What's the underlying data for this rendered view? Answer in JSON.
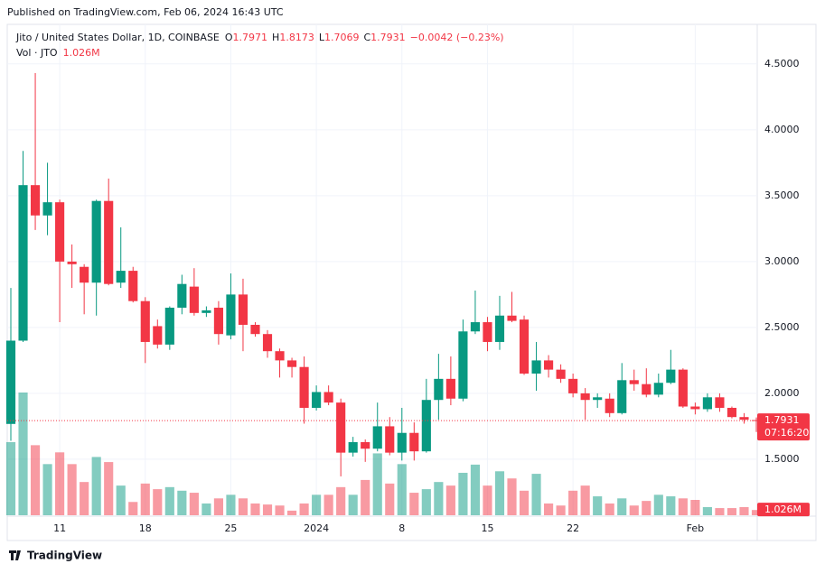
{
  "published": "Published on TradingView.com, Feb 06, 2024 16:43 UTC",
  "footer": "TradingView",
  "chart_data": {
    "type": "candlestick",
    "title": "Jito / United States Dollar, 1D, COINBASE",
    "ohlc_prefixes": [
      "O",
      "H",
      "L",
      "C"
    ],
    "change": "−0.0042 (−0.23%)",
    "volume_title": "Vol · JTO",
    "volume_label": "1.026M",
    "countdown": "07:16:20",
    "categories": [
      null,
      null,
      null,
      null,
      "11",
      null,
      null,
      null,
      null,
      null,
      null,
      "18",
      null,
      null,
      null,
      null,
      null,
      null,
      "25",
      null,
      null,
      null,
      null,
      null,
      null,
      "2024",
      null,
      null,
      null,
      null,
      null,
      null,
      "8",
      null,
      null,
      null,
      null,
      null,
      null,
      "15",
      null,
      null,
      null,
      null,
      null,
      null,
      "22",
      null,
      null,
      null,
      null,
      null,
      null,
      null,
      null,
      null,
      "Feb",
      null,
      null,
      null,
      null,
      null
    ],
    "open": [
      1.768,
      2.4,
      3.58,
      3.35,
      3.45,
      3.0,
      2.96,
      2.84,
      3.46,
      2.84,
      2.93,
      2.7,
      2.51,
      2.37,
      2.65,
      2.81,
      2.61,
      2.65,
      2.44,
      2.75,
      2.52,
      2.45,
      2.32,
      2.25,
      2.2,
      1.89,
      2.01,
      1.93,
      1.55,
      1.63,
      1.58,
      1.75,
      1.55,
      1.7,
      1.56,
      1.95,
      2.11,
      1.96,
      2.47,
      2.54,
      2.39,
      2.59,
      2.56,
      2.15,
      2.25,
      2.18,
      2.11,
      2.0,
      1.95,
      1.96,
      1.85,
      2.1,
      2.07,
      1.99,
      2.08,
      2.18,
      1.9,
      1.88,
      1.97,
      1.89,
      1.82,
      1.7971
    ],
    "high": [
      2.8,
      3.84,
      4.43,
      3.75,
      3.47,
      3.13,
      2.98,
      3.47,
      3.63,
      3.26,
      2.96,
      2.73,
      2.56,
      2.66,
      2.9,
      2.95,
      2.66,
      2.7,
      2.91,
      2.87,
      2.54,
      2.48,
      2.34,
      2.27,
      2.28,
      2.06,
      2.06,
      1.96,
      1.67,
      1.65,
      1.93,
      1.82,
      1.89,
      1.78,
      2.11,
      2.3,
      2.28,
      2.56,
      2.78,
      2.58,
      2.74,
      2.77,
      2.59,
      2.39,
      2.29,
      2.22,
      2.15,
      2.04,
      2.0,
      2.0,
      2.23,
      2.18,
      2.19,
      2.15,
      2.33,
      2.19,
      1.93,
      2.0,
      2.0,
      1.9,
      1.85,
      1.8173
    ],
    "low": [
      1.64,
      2.39,
      3.24,
      3.2,
      2.54,
      2.8,
      2.6,
      2.59,
      2.82,
      2.8,
      2.69,
      2.23,
      2.34,
      2.33,
      2.6,
      2.59,
      2.58,
      2.37,
      2.41,
      2.32,
      2.43,
      2.27,
      2.12,
      2.12,
      1.77,
      1.87,
      1.91,
      1.37,
      1.52,
      1.48,
      1.56,
      1.53,
      1.49,
      1.49,
      1.55,
      1.8,
      1.91,
      1.94,
      2.45,
      2.32,
      2.33,
      2.54,
      2.14,
      2.02,
      2.12,
      2.08,
      1.97,
      1.8,
      1.89,
      1.82,
      1.84,
      2.02,
      1.97,
      1.97,
      2.07,
      1.89,
      1.84,
      1.86,
      1.86,
      1.81,
      1.77,
      1.7069
    ],
    "close": [
      2.4,
      3.58,
      3.35,
      3.45,
      3.0,
      2.98,
      2.84,
      3.46,
      2.83,
      2.93,
      2.7,
      2.39,
      2.37,
      2.65,
      2.83,
      2.61,
      2.63,
      2.45,
      2.75,
      2.52,
      2.45,
      2.32,
      2.25,
      2.2,
      1.89,
      2.01,
      1.93,
      1.55,
      1.63,
      1.58,
      1.75,
      1.55,
      1.7,
      1.56,
      1.95,
      2.11,
      1.96,
      2.47,
      2.54,
      2.39,
      2.59,
      2.55,
      2.15,
      2.25,
      2.18,
      2.11,
      2.0,
      1.95,
      1.97,
      1.85,
      2.1,
      2.07,
      1.99,
      2.08,
      2.18,
      1.9,
      1.88,
      1.97,
      1.89,
      1.82,
      1.8,
      1.7931
    ],
    "volume": [
      14300000,
      24000000,
      13700000,
      10000000,
      12300000,
      10000000,
      6500000,
      11400000,
      10400000,
      5800000,
      2600000,
      6200000,
      5100000,
      5500000,
      4800000,
      4400000,
      2300000,
      3300000,
      4000000,
      3300000,
      2300000,
      2100000,
      1900000,
      900000,
      2300000,
      4000000,
      4000000,
      5500000,
      4000000,
      6900000,
      12100000,
      6200000,
      10000000,
      4400000,
      5100000,
      6500000,
      5800000,
      8300000,
      9900000,
      5800000,
      8600000,
      7200000,
      4800000,
      8100000,
      2300000,
      1900000,
      4800000,
      5800000,
      3700000,
      2300000,
      3300000,
      1900000,
      2800000,
      4000000,
      3700000,
      3300000,
      3000000,
      1600000,
      1400000,
      1400000,
      1600000,
      1026000
    ],
    "up_color": "#089981",
    "down_color": "#f23645",
    "ylim": [
      1.075,
      4.8
    ],
    "yticks": [
      {
        "value": 1.5,
        "label": "1.5000"
      },
      {
        "value": 2,
        "label": "2.0000"
      },
      {
        "value": 2.5,
        "label": "2.5000"
      },
      {
        "value": 3,
        "label": "3.0000"
      },
      {
        "value": 3.5,
        "label": "3.5000"
      },
      {
        "value": 4,
        "label": "4.0000"
      },
      {
        "value": 4.5,
        "label": "4.5000"
      }
    ],
    "volume_lim": [
      0,
      30000000
    ],
    "grid": true
  }
}
